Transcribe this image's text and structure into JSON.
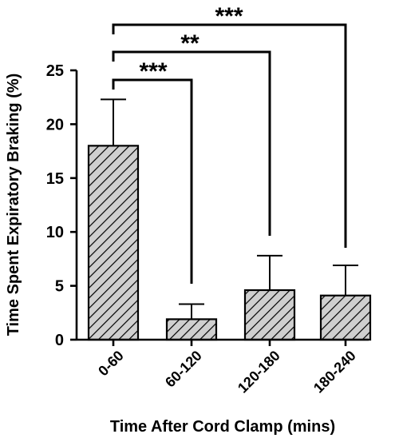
{
  "chart_data": {
    "type": "bar",
    "categories": [
      "0-60",
      "60-120",
      "120-180",
      "180-240"
    ],
    "values": [
      18.0,
      1.9,
      4.6,
      4.1
    ],
    "error_upper": [
      22.3,
      3.3,
      7.8,
      6.9
    ],
    "xlabel": "Time After Cord Clamp (mins)",
    "ylabel": "Time Spent Expiratory Braking (%)",
    "ylim": [
      0,
      25
    ],
    "yticks": [
      0,
      5,
      10,
      15,
      20,
      25
    ],
    "bar_fill": "hatched grey",
    "grid": false,
    "significance": [
      {
        "from": "0-60",
        "to": "60-120",
        "label": "***"
      },
      {
        "from": "0-60",
        "to": "120-180",
        "label": "**"
      },
      {
        "from": "0-60",
        "to": "180-240",
        "label": "***"
      }
    ]
  },
  "colors": {
    "bar_fill": "#cfcfcf",
    "hatch": "#000000",
    "axis": "#000000"
  }
}
